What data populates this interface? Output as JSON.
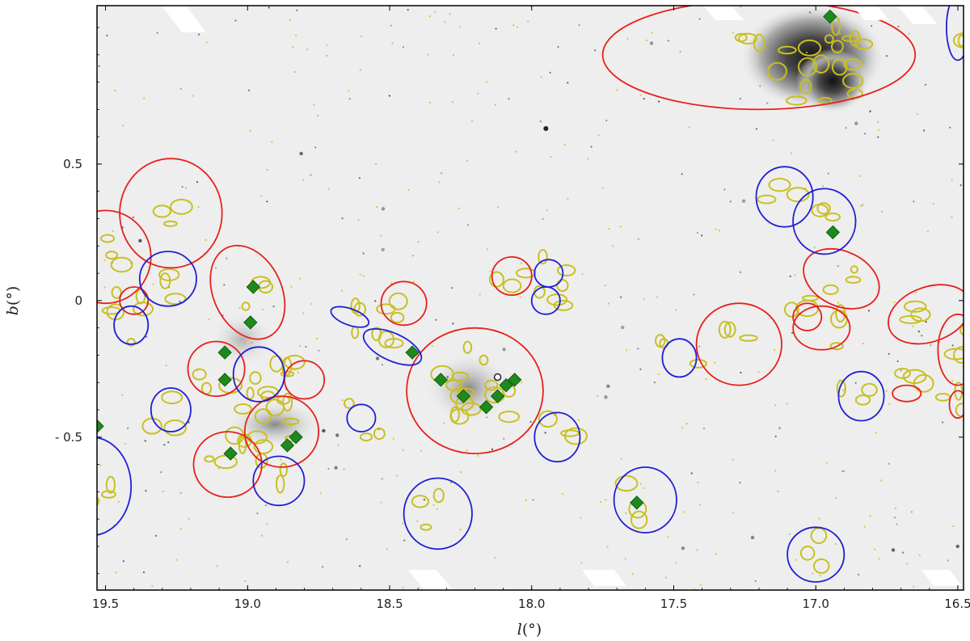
{
  "figure": {
    "x_axis": {
      "label_var": "l",
      "label_unit": "(°)",
      "ticks": [
        "19.5",
        "19.0",
        "18.5",
        "18.0",
        "17.5",
        "17.0",
        "16.5"
      ],
      "range": [
        19.53,
        16.48
      ],
      "direction": "decreasing"
    },
    "y_axis": {
      "label_var": "b",
      "label_unit": "(°)",
      "ticks": [
        "0.5",
        "0",
        "- 0.5"
      ],
      "tick_values": [
        0.5,
        0.0,
        -0.5
      ],
      "range": [
        -1.06,
        1.08
      ]
    },
    "background": "grayscale infrared image with bright emission region near l=16.95, b=0.85 and cluster near l=18.2, b=-0.3",
    "colors": {
      "red_circles": "#e8201c",
      "blue_circles": "#1f1fd6",
      "contours": "#c8c020",
      "markers": "#1e8a1e",
      "frame": "#000000"
    },
    "red_regions": [
      {
        "l": 17.2,
        "b": 0.9,
        "rl": 0.55,
        "rb": 0.2,
        "angle": 0
      },
      {
        "l": 19.27,
        "b": 0.32,
        "rl": 0.18,
        "rb": 0.2,
        "angle": 0
      },
      {
        "l": 19.5,
        "b": 0.16,
        "rl": 0.16,
        "rb": 0.17,
        "angle": 0
      },
      {
        "l": 19.0,
        "b": 0.03,
        "rl": 0.12,
        "rb": 0.18,
        "angle": -25
      },
      {
        "l": 19.4,
        "b": 0.0,
        "rl": 0.05,
        "rb": 0.05,
        "angle": 0
      },
      {
        "l": 19.11,
        "b": -0.25,
        "rl": 0.1,
        "rb": 0.1,
        "angle": 0
      },
      {
        "l": 18.8,
        "b": -0.29,
        "rl": 0.07,
        "rb": 0.07,
        "angle": 0
      },
      {
        "l": 18.88,
        "b": -0.48,
        "rl": 0.13,
        "rb": 0.13,
        "angle": 0
      },
      {
        "l": 19.07,
        "b": -0.6,
        "rl": 0.12,
        "rb": 0.12,
        "angle": 0
      },
      {
        "l": 18.45,
        "b": -0.01,
        "rl": 0.08,
        "rb": 0.08,
        "angle": 0
      },
      {
        "l": 18.2,
        "b": -0.33,
        "rl": 0.24,
        "rb": 0.23,
        "angle": 0
      },
      {
        "l": 18.07,
        "b": 0.09,
        "rl": 0.07,
        "rb": 0.07,
        "angle": 0
      },
      {
        "l": 17.27,
        "b": -0.16,
        "rl": 0.15,
        "rb": 0.15,
        "angle": 0
      },
      {
        "l": 16.91,
        "b": 0.08,
        "rl": 0.14,
        "rb": 0.1,
        "angle": 25
      },
      {
        "l": 16.98,
        "b": -0.1,
        "rl": 0.1,
        "rb": 0.08,
        "angle": 0
      },
      {
        "l": 17.03,
        "b": -0.06,
        "rl": 0.05,
        "rb": 0.05,
        "angle": 0
      },
      {
        "l": 16.6,
        "b": -0.05,
        "rl": 0.15,
        "rb": 0.1,
        "angle": -20
      },
      {
        "l": 16.5,
        "b": -0.18,
        "rl": 0.07,
        "rb": 0.13,
        "angle": 0
      },
      {
        "l": 16.68,
        "b": -0.34,
        "rl": 0.05,
        "rb": 0.03,
        "angle": 0
      },
      {
        "l": 16.5,
        "b": -0.38,
        "rl": 0.03,
        "rb": 0.05,
        "angle": 0
      }
    ],
    "blue_regions": [
      {
        "l": 19.28,
        "b": 0.08,
        "rl": 0.1,
        "rb": 0.1,
        "angle": 0
      },
      {
        "l": 19.41,
        "b": -0.09,
        "rl": 0.06,
        "rb": 0.07,
        "angle": 0
      },
      {
        "l": 19.27,
        "b": -0.4,
        "rl": 0.07,
        "rb": 0.08,
        "angle": 0
      },
      {
        "l": 18.96,
        "b": -0.27,
        "rl": 0.09,
        "rb": 0.1,
        "angle": 0
      },
      {
        "l": 18.89,
        "b": -0.66,
        "rl": 0.09,
        "rb": 0.09,
        "angle": 0
      },
      {
        "l": 19.55,
        "b": -0.68,
        "rl": 0.14,
        "rb": 0.18,
        "angle": 0
      },
      {
        "l": 18.6,
        "b": -0.43,
        "rl": 0.05,
        "rb": 0.05,
        "angle": 0
      },
      {
        "l": 18.64,
        "b": -0.06,
        "rl": 0.07,
        "rb": 0.03,
        "angle": 20
      },
      {
        "l": 18.49,
        "b": -0.17,
        "rl": 0.11,
        "rb": 0.05,
        "angle": 25
      },
      {
        "l": 17.94,
        "b": 0.1,
        "rl": 0.05,
        "rb": 0.05,
        "angle": 0
      },
      {
        "l": 17.95,
        "b": 0.0,
        "rl": 0.05,
        "rb": 0.05,
        "angle": 0
      },
      {
        "l": 17.91,
        "b": -0.5,
        "rl": 0.08,
        "rb": 0.09,
        "angle": 0
      },
      {
        "l": 17.48,
        "b": -0.21,
        "rl": 0.06,
        "rb": 0.07,
        "angle": 0
      },
      {
        "l": 17.6,
        "b": -0.73,
        "rl": 0.11,
        "rb": 0.12,
        "angle": 0
      },
      {
        "l": 18.33,
        "b": -0.78,
        "rl": 0.12,
        "rb": 0.13,
        "angle": 0
      },
      {
        "l": 17.11,
        "b": 0.38,
        "rl": 0.1,
        "rb": 0.11,
        "angle": 0
      },
      {
        "l": 16.97,
        "b": 0.29,
        "rl": 0.11,
        "rb": 0.12,
        "angle": 0
      },
      {
        "l": 16.84,
        "b": -0.35,
        "rl": 0.08,
        "rb": 0.09,
        "angle": 0
      },
      {
        "l": 17.0,
        "b": -0.93,
        "rl": 0.1,
        "rb": 0.1,
        "angle": 0
      },
      {
        "l": 16.5,
        "b": 1.0,
        "rl": 0.04,
        "rb": 0.12,
        "angle": 0
      }
    ],
    "markers": [
      {
        "l": 18.98,
        "b": 0.05
      },
      {
        "l": 18.99,
        "b": -0.08
      },
      {
        "l": 19.08,
        "b": -0.19
      },
      {
        "l": 19.08,
        "b": -0.29
      },
      {
        "l": 19.06,
        "b": -0.56
      },
      {
        "l": 18.86,
        "b": -0.53
      },
      {
        "l": 18.83,
        "b": -0.5
      },
      {
        "l": 18.42,
        "b": -0.19
      },
      {
        "l": 18.32,
        "b": -0.29
      },
      {
        "l": 18.24,
        "b": -0.35
      },
      {
        "l": 18.16,
        "b": -0.39
      },
      {
        "l": 18.12,
        "b": -0.35
      },
      {
        "l": 18.06,
        "b": -0.29
      },
      {
        "l": 18.09,
        "b": -0.31
      },
      {
        "l": 17.63,
        "b": -0.74
      },
      {
        "l": 16.94,
        "b": 0.25
      },
      {
        "l": 16.95,
        "b": 1.04
      },
      {
        "l": 19.53,
        "b": -0.46
      }
    ]
  }
}
